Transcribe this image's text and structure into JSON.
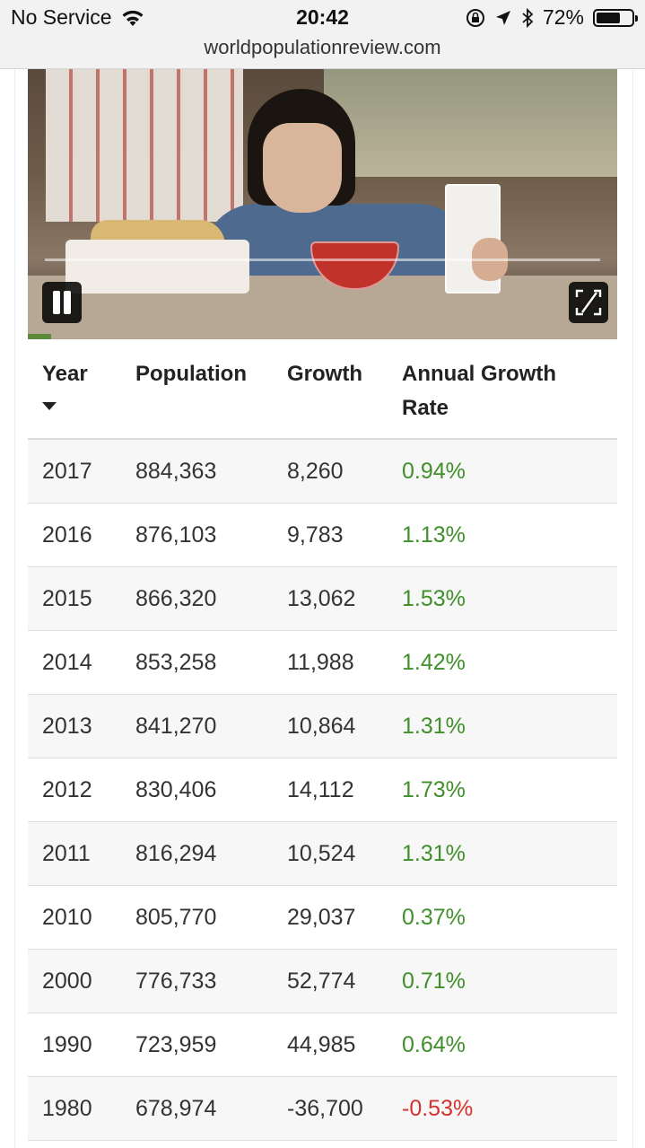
{
  "status_bar": {
    "carrier": "No Service",
    "time": "20:42",
    "battery_percent": "72%",
    "battery_level": 0.72
  },
  "address_bar": {
    "url": "worldpopulationreview.com"
  },
  "video": {
    "playback_progress": 0.0
  },
  "table": {
    "headers": {
      "year": "Year",
      "population": "Population",
      "growth": "Growth",
      "annual_growth_rate": "Annual Growth Rate"
    },
    "sorted_by": "Year",
    "sort_direction": "descending",
    "rows": [
      {
        "year": "2017",
        "population": "884,363",
        "growth": "8,260",
        "rate": "0.94%"
      },
      {
        "year": "2016",
        "population": "876,103",
        "growth": "9,783",
        "rate": "1.13%"
      },
      {
        "year": "2015",
        "population": "866,320",
        "growth": "13,062",
        "rate": "1.53%"
      },
      {
        "year": "2014",
        "population": "853,258",
        "growth": "11,988",
        "rate": "1.42%"
      },
      {
        "year": "2013",
        "population": "841,270",
        "growth": "10,864",
        "rate": "1.31%"
      },
      {
        "year": "2012",
        "population": "830,406",
        "growth": "14,112",
        "rate": "1.73%"
      },
      {
        "year": "2011",
        "population": "816,294",
        "growth": "10,524",
        "rate": "1.31%"
      },
      {
        "year": "2010",
        "population": "805,770",
        "growth": "29,037",
        "rate": "0.37%"
      },
      {
        "year": "2000",
        "population": "776,733",
        "growth": "52,774",
        "rate": "0.71%"
      },
      {
        "year": "1990",
        "population": "723,959",
        "growth": "44,985",
        "rate": "0.64%"
      },
      {
        "year": "1980",
        "population": "678,974",
        "growth": "-36,700",
        "rate": "-0.53%"
      }
    ]
  },
  "colors": {
    "positive_rate": "#3f8f2a",
    "negative_rate": "#d3332c"
  }
}
